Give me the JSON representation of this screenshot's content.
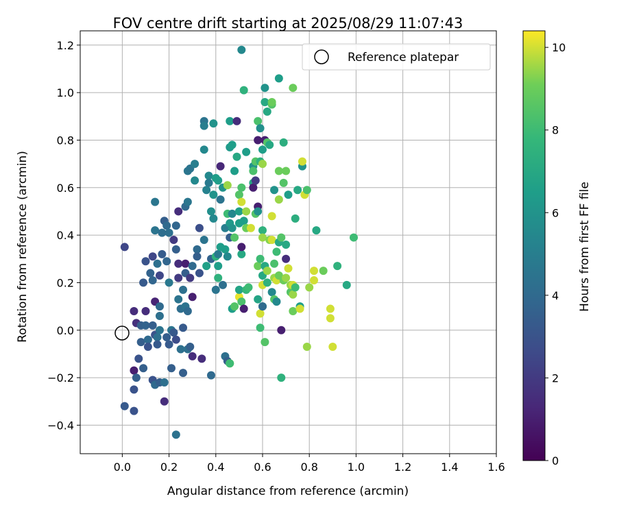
{
  "chart_data": {
    "type": "scatter",
    "title": "FOV centre drift starting at 2025/08/29 11:07:43",
    "xlabel": "Angular distance from reference (arcmin)",
    "ylabel": "Rotation from reference (arcmin)",
    "xlim": [
      -0.18,
      1.6
    ],
    "ylim": [
      -0.52,
      1.26
    ],
    "xticks": [
      0.0,
      0.2,
      0.4,
      0.6,
      0.8,
      1.0,
      1.2,
      1.4,
      1.6
    ],
    "xtick_labels": [
      "0.0",
      "0.2",
      "0.4",
      "0.6",
      "0.8",
      "1.0",
      "1.2",
      "1.4",
      "1.6"
    ],
    "yticks": [
      -0.4,
      -0.2,
      0.0,
      0.2,
      0.4,
      0.6,
      0.8,
      1.0,
      1.2
    ],
    "ytick_labels": [
      "−0.4",
      "−0.2",
      "0.0",
      "0.2",
      "0.4",
      "0.6",
      "0.8",
      "1.0",
      "1.2"
    ],
    "grid": true,
    "legend": {
      "position": "top-right",
      "entries": [
        "Reference platepar"
      ]
    },
    "colorbar": {
      "label": "Hours from first FF file",
      "colormap": "viridis",
      "range": [
        0,
        10.4
      ],
      "ticks": [
        0,
        2,
        4,
        6,
        8,
        10
      ],
      "tick_labels": [
        "0",
        "2",
        "4",
        "6",
        "8",
        "10"
      ]
    },
    "reference_point": {
      "x": 0.0,
      "y": 0.0,
      "label": "Reference platepar"
    },
    "points": [
      {
        "x": 0.01,
        "y": 0.35,
        "h": 2.5
      },
      {
        "x": 0.01,
        "y": -0.32,
        "h": 3.3
      },
      {
        "x": 0.05,
        "y": -0.34,
        "h": 3.0
      },
      {
        "x": 0.05,
        "y": -0.25,
        "h": 3.0
      },
      {
        "x": 0.05,
        "y": -0.17,
        "h": 1.0
      },
      {
        "x": 0.05,
        "y": 0.08,
        "h": 1.5
      },
      {
        "x": 0.06,
        "y": 0.03,
        "h": 1.6
      },
      {
        "x": 0.06,
        "y": -0.2,
        "h": 3.5
      },
      {
        "x": 0.07,
        "y": -0.12,
        "h": 3.0
      },
      {
        "x": 0.08,
        "y": 0.02,
        "h": 3.5
      },
      {
        "x": 0.08,
        "y": -0.05,
        "h": 3.5
      },
      {
        "x": 0.09,
        "y": 0.2,
        "h": 3.3
      },
      {
        "x": 0.09,
        "y": -0.16,
        "h": 3.5
      },
      {
        "x": 0.1,
        "y": 0.29,
        "h": 3.0
      },
      {
        "x": 0.1,
        "y": 0.08,
        "h": 1.5
      },
      {
        "x": 0.1,
        "y": 0.02,
        "h": 3.7
      },
      {
        "x": 0.11,
        "y": -0.04,
        "h": 4.0
      },
      {
        "x": 0.11,
        "y": -0.07,
        "h": 3.0
      },
      {
        "x": 0.12,
        "y": 0.24,
        "h": 3.7
      },
      {
        "x": 0.13,
        "y": 0.31,
        "h": 2.5
      },
      {
        "x": 0.13,
        "y": 0.21,
        "h": 3.8
      },
      {
        "x": 0.13,
        "y": 0.02,
        "h": 3.5
      },
      {
        "x": 0.13,
        "y": -0.21,
        "h": 3.0
      },
      {
        "x": 0.14,
        "y": 0.12,
        "h": 1.2
      },
      {
        "x": 0.14,
        "y": -0.02,
        "h": 3.0
      },
      {
        "x": 0.14,
        "y": -0.23,
        "h": 4.0
      },
      {
        "x": 0.14,
        "y": 0.42,
        "h": 4.5
      },
      {
        "x": 0.14,
        "y": 0.54,
        "h": 4.6
      },
      {
        "x": 0.15,
        "y": 0.28,
        "h": 4.3
      },
      {
        "x": 0.15,
        "y": -0.03,
        "h": 4.3
      },
      {
        "x": 0.15,
        "y": -0.06,
        "h": 3.3
      },
      {
        "x": 0.16,
        "y": 0.23,
        "h": 2.5
      },
      {
        "x": 0.16,
        "y": 0.1,
        "h": 4.0
      },
      {
        "x": 0.16,
        "y": 0.06,
        "h": 4.3
      },
      {
        "x": 0.16,
        "y": 0.0,
        "h": 4.5
      },
      {
        "x": 0.16,
        "y": -0.22,
        "h": 3.5
      },
      {
        "x": 0.17,
        "y": 0.41,
        "h": 4.2
      },
      {
        "x": 0.17,
        "y": 0.32,
        "h": 3.4
      },
      {
        "x": 0.18,
        "y": 0.46,
        "h": 3.5
      },
      {
        "x": 0.18,
        "y": -0.3,
        "h": 1.5
      },
      {
        "x": 0.18,
        "y": -0.22,
        "h": 4.3
      },
      {
        "x": 0.19,
        "y": 0.29,
        "h": 3.8
      },
      {
        "x": 0.19,
        "y": 0.44,
        "h": 4.0
      },
      {
        "x": 0.19,
        "y": -0.03,
        "h": 3.5
      },
      {
        "x": 0.2,
        "y": 0.2,
        "h": 4.7
      },
      {
        "x": 0.2,
        "y": 0.41,
        "h": 4.3
      },
      {
        "x": 0.2,
        "y": -0.06,
        "h": 3.3
      },
      {
        "x": 0.21,
        "y": -0.16,
        "h": 3.5
      },
      {
        "x": 0.21,
        "y": 0.0,
        "h": 4.5
      },
      {
        "x": 0.22,
        "y": 0.38,
        "h": 2.0
      },
      {
        "x": 0.22,
        "y": -0.01,
        "h": 3.2
      },
      {
        "x": 0.23,
        "y": 0.34,
        "h": 3.5
      },
      {
        "x": 0.23,
        "y": 0.44,
        "h": 3.8
      },
      {
        "x": 0.23,
        "y": -0.04,
        "h": 2.7
      },
      {
        "x": 0.23,
        "y": -0.44,
        "h": 4.4
      },
      {
        "x": 0.24,
        "y": 0.28,
        "h": 1.5
      },
      {
        "x": 0.24,
        "y": 0.22,
        "h": 2.0
      },
      {
        "x": 0.24,
        "y": 0.13,
        "h": 4.5
      },
      {
        "x": 0.24,
        "y": 0.5,
        "h": 1.5
      },
      {
        "x": 0.25,
        "y": 0.09,
        "h": 4.2
      },
      {
        "x": 0.25,
        "y": -0.08,
        "h": 4.3
      },
      {
        "x": 0.26,
        "y": 0.17,
        "h": 4.3
      },
      {
        "x": 0.26,
        "y": 0.01,
        "h": 3.3
      },
      {
        "x": 0.26,
        "y": -0.18,
        "h": 3.5
      },
      {
        "x": 0.27,
        "y": 0.28,
        "h": 1.0
      },
      {
        "x": 0.27,
        "y": 0.24,
        "h": 3.5
      },
      {
        "x": 0.27,
        "y": 0.1,
        "h": 4.5
      },
      {
        "x": 0.27,
        "y": 0.52,
        "h": 4.0
      },
      {
        "x": 0.28,
        "y": 0.08,
        "h": 4.0
      },
      {
        "x": 0.28,
        "y": -0.08,
        "h": 4.3
      },
      {
        "x": 0.28,
        "y": 0.54,
        "h": 4.6
      },
      {
        "x": 0.28,
        "y": 0.67,
        "h": 4.6
      },
      {
        "x": 0.29,
        "y": 0.22,
        "h": 2.0
      },
      {
        "x": 0.29,
        "y": 0.68,
        "h": 4.5
      },
      {
        "x": 0.29,
        "y": -0.07,
        "h": 3.5
      },
      {
        "x": 0.3,
        "y": 0.14,
        "h": 1.0
      },
      {
        "x": 0.3,
        "y": 0.27,
        "h": 4.0
      },
      {
        "x": 0.3,
        "y": -0.11,
        "h": 1.5
      },
      {
        "x": 0.31,
        "y": 0.7,
        "h": 5.0
      },
      {
        "x": 0.31,
        "y": 0.63,
        "h": 5.5
      },
      {
        "x": 0.32,
        "y": 0.34,
        "h": 4.0
      },
      {
        "x": 0.32,
        "y": 0.31,
        "h": 3.5
      },
      {
        "x": 0.33,
        "y": 0.43,
        "h": 2.8
      },
      {
        "x": 0.33,
        "y": 0.24,
        "h": 3.0
      },
      {
        "x": 0.34,
        "y": -0.12,
        "h": 1.5
      },
      {
        "x": 0.35,
        "y": 0.88,
        "h": 4.5
      },
      {
        "x": 0.35,
        "y": 0.86,
        "h": 5.0
      },
      {
        "x": 0.35,
        "y": 0.76,
        "h": 5.5
      },
      {
        "x": 0.35,
        "y": 0.38,
        "h": 4.5
      },
      {
        "x": 0.36,
        "y": 0.27,
        "h": 6.6
      },
      {
        "x": 0.36,
        "y": 0.59,
        "h": 5.2
      },
      {
        "x": 0.37,
        "y": 0.65,
        "h": 5.5
      },
      {
        "x": 0.37,
        "y": 0.62,
        "h": 4.8
      },
      {
        "x": 0.38,
        "y": -0.19,
        "h": 4.0
      },
      {
        "x": 0.38,
        "y": 0.3,
        "h": 3.7
      },
      {
        "x": 0.38,
        "y": 0.5,
        "h": 5.8
      },
      {
        "x": 0.39,
        "y": 0.87,
        "h": 6.0
      },
      {
        "x": 0.39,
        "y": 0.57,
        "h": 6.0
      },
      {
        "x": 0.39,
        "y": 0.47,
        "h": 5.5
      },
      {
        "x": 0.4,
        "y": 0.64,
        "h": 6.5
      },
      {
        "x": 0.4,
        "y": 0.31,
        "h": 7.5
      },
      {
        "x": 0.4,
        "y": 0.17,
        "h": 4.5
      },
      {
        "x": 0.41,
        "y": 0.63,
        "h": 6.5
      },
      {
        "x": 0.41,
        "y": 0.27,
        "h": 6.5
      },
      {
        "x": 0.41,
        "y": 0.22,
        "h": 7.5
      },
      {
        "x": 0.41,
        "y": 0.32,
        "h": 4.8
      },
      {
        "x": 0.42,
        "y": 0.69,
        "h": 1.3
      },
      {
        "x": 0.42,
        "y": 0.55,
        "h": 4.5
      },
      {
        "x": 0.42,
        "y": 0.35,
        "h": 6.5
      },
      {
        "x": 0.43,
        "y": 0.19,
        "h": 4.3
      },
      {
        "x": 0.43,
        "y": 0.6,
        "h": 6.0
      },
      {
        "x": 0.44,
        "y": 0.43,
        "h": 5.0
      },
      {
        "x": 0.44,
        "y": 0.34,
        "h": 6.5
      },
      {
        "x": 0.44,
        "y": -0.11,
        "h": 4.3
      },
      {
        "x": 0.45,
        "y": 0.61,
        "h": 9.5
      },
      {
        "x": 0.45,
        "y": 0.49,
        "h": 8.0
      },
      {
        "x": 0.45,
        "y": 0.31,
        "h": 5.5
      },
      {
        "x": 0.45,
        "y": -0.13,
        "h": 3.5
      },
      {
        "x": 0.46,
        "y": 0.77,
        "h": 6.3
      },
      {
        "x": 0.46,
        "y": 0.88,
        "h": 6.5
      },
      {
        "x": 0.46,
        "y": 0.45,
        "h": 6.3
      },
      {
        "x": 0.46,
        "y": -0.14,
        "h": 10.0
      },
      {
        "x": 0.46,
        "y": -0.14,
        "h": 8.0
      },
      {
        "x": 0.46,
        "y": 0.39,
        "h": 3.5
      },
      {
        "x": 0.47,
        "y": 0.78,
        "h": 6.5
      },
      {
        "x": 0.47,
        "y": 0.49,
        "h": 5.5
      },
      {
        "x": 0.47,
        "y": 0.43,
        "h": 6.0
      },
      {
        "x": 0.47,
        "y": 0.09,
        "h": 6.5
      },
      {
        "x": 0.48,
        "y": 0.39,
        "h": 8.5
      },
      {
        "x": 0.48,
        "y": 0.67,
        "h": 6.5
      },
      {
        "x": 0.48,
        "y": 0.1,
        "h": 8.5
      },
      {
        "x": 0.49,
        "y": 0.88,
        "h": 1.5
      },
      {
        "x": 0.49,
        "y": 0.73,
        "h": 7.0
      },
      {
        "x": 0.5,
        "y": 0.57,
        "h": 8.5
      },
      {
        "x": 0.5,
        "y": 0.14,
        "h": 10.2
      },
      {
        "x": 0.5,
        "y": 0.5,
        "h": 6.5
      },
      {
        "x": 0.5,
        "y": 0.17,
        "h": 6.8
      },
      {
        "x": 0.5,
        "y": 0.45,
        "h": 6.5
      },
      {
        "x": 0.51,
        "y": 1.18,
        "h": 5.5
      },
      {
        "x": 0.51,
        "y": 0.6,
        "h": 8.3
      },
      {
        "x": 0.51,
        "y": 0.54,
        "h": 10.0
      },
      {
        "x": 0.51,
        "y": 0.32,
        "h": 7.0
      },
      {
        "x": 0.51,
        "y": 0.35,
        "h": 1.0
      },
      {
        "x": 0.51,
        "y": 0.12,
        "h": 8.3
      },
      {
        "x": 0.52,
        "y": 0.46,
        "h": 6.5
      },
      {
        "x": 0.52,
        "y": 0.09,
        "h": 1.0
      },
      {
        "x": 0.52,
        "y": 1.01,
        "h": 7.5
      },
      {
        "x": 0.53,
        "y": 0.5,
        "h": 9.5
      },
      {
        "x": 0.53,
        "y": 0.75,
        "h": 6.5
      },
      {
        "x": 0.53,
        "y": 0.17,
        "h": 7.8
      },
      {
        "x": 0.53,
        "y": 0.43,
        "h": 9.0
      },
      {
        "x": 0.54,
        "y": 0.18,
        "h": 8.0
      },
      {
        "x": 0.55,
        "y": 0.43,
        "h": 10.0
      },
      {
        "x": 0.56,
        "y": 0.69,
        "h": 6.0
      },
      {
        "x": 0.56,
        "y": 0.62,
        "h": 7.0
      },
      {
        "x": 0.56,
        "y": 0.67,
        "h": 8.3
      },
      {
        "x": 0.56,
        "y": 0.6,
        "h": 1.0
      },
      {
        "x": 0.57,
        "y": 0.71,
        "h": 8.5
      },
      {
        "x": 0.57,
        "y": 0.63,
        "h": 2.0
      },
      {
        "x": 0.57,
        "y": 0.49,
        "h": 8.5
      },
      {
        "x": 0.58,
        "y": 0.27,
        "h": 9.0
      },
      {
        "x": 0.58,
        "y": 0.88,
        "h": 8.3
      },
      {
        "x": 0.58,
        "y": 0.8,
        "h": 1.0
      },
      {
        "x": 0.58,
        "y": 0.13,
        "h": 6.8
      },
      {
        "x": 0.58,
        "y": 0.52,
        "h": 1.0
      },
      {
        "x": 0.58,
        "y": 0.5,
        "h": 6.0
      },
      {
        "x": 0.59,
        "y": 0.71,
        "h": 7.5
      },
      {
        "x": 0.59,
        "y": 0.85,
        "h": 5.8
      },
      {
        "x": 0.59,
        "y": 0.3,
        "h": 8.0
      },
      {
        "x": 0.59,
        "y": 0.07,
        "h": 10.0
      },
      {
        "x": 0.59,
        "y": 0.01,
        "h": 8.0
      },
      {
        "x": 0.6,
        "y": 0.7,
        "h": 9.5
      },
      {
        "x": 0.6,
        "y": 0.76,
        "h": 6.5
      },
      {
        "x": 0.6,
        "y": 0.42,
        "h": 7.5
      },
      {
        "x": 0.6,
        "y": 0.19,
        "h": 10.0
      },
      {
        "x": 0.6,
        "y": 0.1,
        "h": 6.5
      },
      {
        "x": 0.6,
        "y": 0.23,
        "h": 7.0
      },
      {
        "x": 0.6,
        "y": 0.1,
        "h": 4.0
      },
      {
        "x": 0.6,
        "y": 0.39,
        "h": 9.5
      },
      {
        "x": 0.61,
        "y": 1.02,
        "h": 6.0
      },
      {
        "x": 0.61,
        "y": 0.96,
        "h": 7.0
      },
      {
        "x": 0.61,
        "y": -0.05,
        "h": 8.5
      },
      {
        "x": 0.61,
        "y": 0.8,
        "h": 1.0
      },
      {
        "x": 0.61,
        "y": 0.27,
        "h": 7.0
      },
      {
        "x": 0.62,
        "y": 0.92,
        "h": 7.0
      },
      {
        "x": 0.62,
        "y": 0.79,
        "h": 8.5
      },
      {
        "x": 0.62,
        "y": 0.25,
        "h": 9.5
      },
      {
        "x": 0.62,
        "y": 0.2,
        "h": 7.5
      },
      {
        "x": 0.63,
        "y": 0.38,
        "h": 9.3
      },
      {
        "x": 0.63,
        "y": 0.78,
        "h": 7.0
      },
      {
        "x": 0.64,
        "y": 0.95,
        "h": 8.5
      },
      {
        "x": 0.64,
        "y": 0.96,
        "h": 9.0
      },
      {
        "x": 0.64,
        "y": 0.16,
        "h": 5.5
      },
      {
        "x": 0.64,
        "y": 0.48,
        "h": 10.0
      },
      {
        "x": 0.64,
        "y": 0.38,
        "h": 10.0
      },
      {
        "x": 0.65,
        "y": 0.22,
        "h": 9.5
      },
      {
        "x": 0.65,
        "y": 0.59,
        "h": 6.0
      },
      {
        "x": 0.65,
        "y": 0.28,
        "h": 8.3
      },
      {
        "x": 0.65,
        "y": 0.13,
        "h": 8.5
      },
      {
        "x": 0.66,
        "y": 0.12,
        "h": 5.5
      },
      {
        "x": 0.66,
        "y": 0.33,
        "h": 8.0
      },
      {
        "x": 0.66,
        "y": 0.21,
        "h": 10.0
      },
      {
        "x": 0.67,
        "y": 1.06,
        "h": 6.5
      },
      {
        "x": 0.67,
        "y": 0.55,
        "h": 9.5
      },
      {
        "x": 0.67,
        "y": 0.67,
        "h": 9.0
      },
      {
        "x": 0.67,
        "y": 0.37,
        "h": 7.0
      },
      {
        "x": 0.67,
        "y": 0.23,
        "h": 9.0
      },
      {
        "x": 0.68,
        "y": 0.0,
        "h": 1.0
      },
      {
        "x": 0.68,
        "y": 0.39,
        "h": 8.5
      },
      {
        "x": 0.68,
        "y": -0.2,
        "h": 7.5
      },
      {
        "x": 0.69,
        "y": 0.62,
        "h": 8.5
      },
      {
        "x": 0.69,
        "y": 0.79,
        "h": 7.3
      },
      {
        "x": 0.69,
        "y": 0.21,
        "h": 9.0
      },
      {
        "x": 0.7,
        "y": 0.22,
        "h": 9.5
      },
      {
        "x": 0.7,
        "y": 0.36,
        "h": 7.0
      },
      {
        "x": 0.7,
        "y": 0.3,
        "h": 1.5
      },
      {
        "x": 0.7,
        "y": 0.67,
        "h": 9.0
      },
      {
        "x": 0.71,
        "y": 0.26,
        "h": 10.0
      },
      {
        "x": 0.71,
        "y": 0.57,
        "h": 6.5
      },
      {
        "x": 0.72,
        "y": 0.16,
        "h": 8.5
      },
      {
        "x": 0.72,
        "y": 0.19,
        "h": 9.5
      },
      {
        "x": 0.73,
        "y": 0.08,
        "h": 9.0
      },
      {
        "x": 0.73,
        "y": 1.02,
        "h": 9.0
      },
      {
        "x": 0.73,
        "y": 0.15,
        "h": 9.5
      },
      {
        "x": 0.73,
        "y": 0.19,
        "h": 10.0
      },
      {
        "x": 0.74,
        "y": 0.47,
        "h": 7.3
      },
      {
        "x": 0.74,
        "y": 0.18,
        "h": 8.0
      },
      {
        "x": 0.75,
        "y": 0.59,
        "h": 7.0
      },
      {
        "x": 0.76,
        "y": 0.1,
        "h": 6.5
      },
      {
        "x": 0.76,
        "y": 0.09,
        "h": 10.0
      },
      {
        "x": 0.77,
        "y": 0.69,
        "h": 6.0
      },
      {
        "x": 0.77,
        "y": 0.71,
        "h": 10.0
      },
      {
        "x": 0.78,
        "y": 0.57,
        "h": 10.0
      },
      {
        "x": 0.79,
        "y": 0.59,
        "h": 8.3
      },
      {
        "x": 0.79,
        "y": -0.07,
        "h": 9.5
      },
      {
        "x": 0.8,
        "y": 0.18,
        "h": 9.5
      },
      {
        "x": 0.82,
        "y": 0.25,
        "h": 10.0
      },
      {
        "x": 0.82,
        "y": 0.21,
        "h": 10.0
      },
      {
        "x": 0.83,
        "y": 0.42,
        "h": 7.0
      },
      {
        "x": 0.86,
        "y": 0.25,
        "h": 9.0
      },
      {
        "x": 0.89,
        "y": 0.05,
        "h": 10.0
      },
      {
        "x": 0.89,
        "y": 0.09,
        "h": 10.0
      },
      {
        "x": 0.9,
        "y": -0.07,
        "h": 10.0
      },
      {
        "x": 0.92,
        "y": 0.27,
        "h": 7.5
      },
      {
        "x": 0.96,
        "y": 0.19,
        "h": 7.0
      },
      {
        "x": 0.99,
        "y": 0.39,
        "h": 8.0
      }
    ]
  }
}
